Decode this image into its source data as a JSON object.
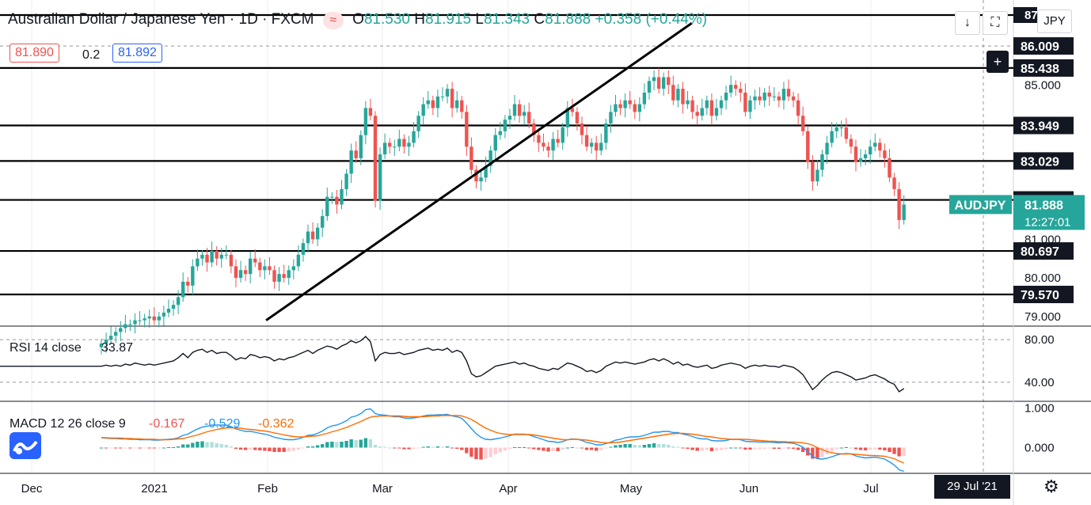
{
  "header": {
    "symbol": "Australian Dollar / Japanese Yen · 1D · FXCM",
    "open_label": "O",
    "open": "81.530",
    "high_label": "H",
    "high": "81.915",
    "low_label": "L",
    "low": "81.343",
    "close_label": "C",
    "close": "81.888",
    "change": "+0.358 (+0.44%)"
  },
  "bidask": {
    "bid": "81.890",
    "spread": "0.2",
    "ask": "81.892"
  },
  "toolbar": {
    "currency": "JPY",
    "date_box": "29 Jul '21"
  },
  "colors": {
    "up": "#26a69a",
    "down": "#ef5350",
    "line": "#000000",
    "macd": "#2196f3",
    "signal": "#ff6d00"
  },
  "chart_data": [
    {
      "type": "candlestick",
      "title": "Australian Dollar / Japanese Yen · 1D · FXCM",
      "price_axis_ticks": [
        79.0,
        80.0,
        81.0,
        85.0
      ],
      "price_axis_tick_labels": [
        "79.000",
        "80.000",
        "81.000",
        "85.000"
      ],
      "ylim": [
        78.75,
        87.2
      ],
      "x_axis_labels": [
        "Dec",
        "2021",
        "Feb",
        "Mar",
        "Apr",
        "May",
        "Jun",
        "Jul"
      ],
      "horizontal_levels": [
        86.009,
        85.438,
        83.949,
        83.029,
        82.02,
        80.697,
        79.57
      ],
      "horizontal_level_labels": [
        "86.009",
        "85.438",
        "83.949",
        "83.029",
        "82.020",
        "80.697",
        "79.570"
      ],
      "top_level_partial": "87",
      "trendline": {
        "start": [
          "2021-02-06",
          78.9
        ],
        "end": [
          "2021-06-10",
          86.6
        ]
      },
      "last_price_label": {
        "symbol": "AUDJPY",
        "price": "81.888",
        "countdown": "12:27:01"
      },
      "closes": [
        78.3,
        78.4,
        78.5,
        78.6,
        78.7,
        78.8,
        78.8,
        78.9,
        78.9,
        78.95,
        79.0,
        78.9,
        79.0,
        79.1,
        79.2,
        79.3,
        79.5,
        79.9,
        79.8,
        80.3,
        80.5,
        80.6,
        80.4,
        80.7,
        80.5,
        80.6,
        80.6,
        80.3,
        80.0,
        80.2,
        80.1,
        80.5,
        80.4,
        80.2,
        80.3,
        80.2,
        79.9,
        80.1,
        80.0,
        80.2,
        80.3,
        80.6,
        80.9,
        81.2,
        81.0,
        81.3,
        81.6,
        82.1,
        82.1,
        81.9,
        82.3,
        82.7,
        83.3,
        83.1,
        83.7,
        84.4,
        84.2,
        82.0,
        83.2,
        83.5,
        83.4,
        83.4,
        83.6,
        83.4,
        83.5,
        83.8,
        84.2,
        84.5,
        84.6,
        84.4,
        84.7,
        84.7,
        84.9,
        84.4,
        84.6,
        84.3,
        83.4,
        82.8,
        82.5,
        82.6,
        82.9,
        83.3,
        83.7,
        83.8,
        84.1,
        84.2,
        84.5,
        84.2,
        84.3,
        84.0,
        83.7,
        83.5,
        83.4,
        83.3,
        83.6,
        83.5,
        83.9,
        84.4,
        84.3,
        84.0,
        83.7,
        83.4,
        83.5,
        83.3,
        83.5,
        84.0,
        84.3,
        84.5,
        84.4,
        84.6,
        84.5,
        84.3,
        84.5,
        84.8,
        85.1,
        85.2,
        84.9,
        85.2,
        85.0,
        84.6,
        84.9,
        84.5,
        84.6,
        84.3,
        84.2,
        84.4,
        84.6,
        84.2,
        84.4,
        84.6,
        84.8,
        85.0,
        84.9,
        84.8,
        84.3,
        84.6,
        84.7,
        84.6,
        84.8,
        84.7,
        84.7,
        84.6,
        84.9,
        84.7,
        84.6,
        84.2,
        83.8,
        83.0,
        82.5,
        82.8,
        83.2,
        83.5,
        83.8,
        83.9,
        83.9,
        83.6,
        83.4,
        83.0,
        83.1,
        83.2,
        83.4,
        83.5,
        83.3,
        83.1,
        82.6,
        82.3,
        81.5,
        81.9
      ]
    },
    {
      "type": "line",
      "title": "RSI 14 close",
      "current_value": "33.87",
      "tick_labels": [
        "80.00",
        "40.00"
      ],
      "ticks": [
        80,
        40
      ],
      "ylim": [
        22,
        92
      ],
      "values": [
        55,
        56,
        55,
        56,
        55,
        57,
        56,
        58,
        57,
        56,
        57,
        56,
        57,
        58,
        59,
        60,
        63,
        67,
        63,
        68,
        70,
        71,
        68,
        70,
        67,
        68,
        68,
        65,
        61,
        63,
        62,
        66,
        65,
        63,
        64,
        63,
        60,
        62,
        61,
        63,
        64,
        66,
        68,
        70,
        67,
        70,
        72,
        74,
        73,
        71,
        74,
        76,
        79,
        77,
        79,
        83,
        78,
        60,
        66,
        68,
        67,
        67,
        68,
        66,
        67,
        68,
        70,
        71,
        72,
        70,
        71,
        70,
        72,
        68,
        70,
        68,
        60,
        48,
        45,
        46,
        49,
        52,
        55,
        56,
        57,
        58,
        59,
        57,
        58,
        56,
        55,
        53,
        52,
        51,
        53,
        52,
        55,
        58,
        57,
        55,
        53,
        50,
        51,
        49,
        51,
        55,
        57,
        59,
        58,
        59,
        58,
        57,
        58,
        59,
        61,
        62,
        60,
        62,
        60,
        57,
        59,
        56,
        57,
        55,
        54,
        55,
        56,
        53,
        54,
        56,
        57,
        58,
        57,
        56,
        53,
        55,
        56,
        55,
        56,
        55,
        55,
        54,
        56,
        55,
        54,
        51,
        47,
        40,
        33,
        37,
        42,
        46,
        49,
        50,
        49,
        47,
        45,
        42,
        43,
        44,
        46,
        47,
        45,
        43,
        40,
        38,
        31,
        34
      ]
    },
    {
      "type": "bar+line",
      "title": "MACD 12 26 close 9",
      "histogram_value": "-0.167",
      "macd_value": "-0.529",
      "signal_value": "-0.362",
      "tick_labels": [
        "1.000",
        "0.000"
      ],
      "ticks": [
        1.0,
        0.0
      ],
      "ylim": [
        -0.65,
        1.15
      ],
      "macd": [
        0.25,
        0.24,
        0.23,
        0.23,
        0.22,
        0.22,
        0.21,
        0.21,
        0.2,
        0.2,
        0.2,
        0.19,
        0.19,
        0.2,
        0.21,
        0.22,
        0.25,
        0.31,
        0.34,
        0.41,
        0.47,
        0.52,
        0.54,
        0.57,
        0.57,
        0.57,
        0.57,
        0.53,
        0.47,
        0.44,
        0.41,
        0.41,
        0.39,
        0.36,
        0.34,
        0.31,
        0.26,
        0.24,
        0.21,
        0.2,
        0.2,
        0.22,
        0.26,
        0.31,
        0.32,
        0.36,
        0.42,
        0.5,
        0.55,
        0.57,
        0.62,
        0.68,
        0.77,
        0.8,
        0.86,
        0.96,
        0.98,
        0.86,
        0.83,
        0.82,
        0.8,
        0.78,
        0.78,
        0.75,
        0.74,
        0.75,
        0.77,
        0.8,
        0.82,
        0.82,
        0.83,
        0.83,
        0.84,
        0.8,
        0.78,
        0.74,
        0.62,
        0.48,
        0.35,
        0.26,
        0.21,
        0.2,
        0.22,
        0.24,
        0.27,
        0.3,
        0.34,
        0.34,
        0.34,
        0.32,
        0.28,
        0.24,
        0.2,
        0.16,
        0.15,
        0.13,
        0.15,
        0.2,
        0.22,
        0.21,
        0.18,
        0.13,
        0.11,
        0.07,
        0.07,
        0.1,
        0.14,
        0.19,
        0.21,
        0.25,
        0.27,
        0.27,
        0.28,
        0.31,
        0.35,
        0.39,
        0.39,
        0.41,
        0.41,
        0.38,
        0.38,
        0.34,
        0.32,
        0.28,
        0.24,
        0.22,
        0.22,
        0.18,
        0.17,
        0.17,
        0.18,
        0.21,
        0.21,
        0.2,
        0.16,
        0.15,
        0.15,
        0.14,
        0.14,
        0.14,
        0.13,
        0.12,
        0.13,
        0.12,
        0.11,
        0.07,
        0.01,
        -0.1,
        -0.22,
        -0.28,
        -0.29,
        -0.27,
        -0.23,
        -0.19,
        -0.16,
        -0.15,
        -0.16,
        -0.21,
        -0.24,
        -0.26,
        -0.25,
        -0.24,
        -0.26,
        -0.29,
        -0.36,
        -0.44,
        -0.56,
        -0.6
      ],
      "signal": [
        0.25,
        0.25,
        0.24,
        0.24,
        0.24,
        0.23,
        0.23,
        0.22,
        0.22,
        0.21,
        0.21,
        0.21,
        0.2,
        0.2,
        0.2,
        0.21,
        0.22,
        0.23,
        0.26,
        0.29,
        0.32,
        0.36,
        0.4,
        0.43,
        0.46,
        0.48,
        0.5,
        0.5,
        0.5,
        0.49,
        0.47,
        0.46,
        0.45,
        0.43,
        0.42,
        0.4,
        0.37,
        0.35,
        0.32,
        0.3,
        0.28,
        0.27,
        0.27,
        0.28,
        0.29,
        0.3,
        0.33,
        0.36,
        0.4,
        0.43,
        0.47,
        0.51,
        0.56,
        0.61,
        0.66,
        0.72,
        0.77,
        0.79,
        0.8,
        0.8,
        0.8,
        0.8,
        0.8,
        0.79,
        0.78,
        0.78,
        0.78,
        0.78,
        0.79,
        0.8,
        0.8,
        0.81,
        0.81,
        0.81,
        0.81,
        0.8,
        0.76,
        0.71,
        0.64,
        0.56,
        0.49,
        0.44,
        0.39,
        0.36,
        0.34,
        0.33,
        0.33,
        0.33,
        0.33,
        0.33,
        0.32,
        0.3,
        0.28,
        0.26,
        0.24,
        0.22,
        0.2,
        0.2,
        0.21,
        0.21,
        0.2,
        0.19,
        0.17,
        0.15,
        0.13,
        0.12,
        0.12,
        0.13,
        0.14,
        0.16,
        0.18,
        0.2,
        0.22,
        0.24,
        0.26,
        0.28,
        0.3,
        0.32,
        0.34,
        0.35,
        0.36,
        0.36,
        0.35,
        0.34,
        0.32,
        0.3,
        0.28,
        0.27,
        0.25,
        0.23,
        0.22,
        0.21,
        0.21,
        0.21,
        0.21,
        0.2,
        0.19,
        0.18,
        0.17,
        0.16,
        0.16,
        0.15,
        0.15,
        0.14,
        0.14,
        0.13,
        0.12,
        0.1,
        0.06,
        0.0,
        -0.05,
        -0.1,
        -0.13,
        -0.15,
        -0.16,
        -0.16,
        -0.16,
        -0.17,
        -0.18,
        -0.19,
        -0.2,
        -0.2,
        -0.21,
        -0.22,
        -0.25,
        -0.28,
        -0.34,
        -0.39
      ]
    }
  ]
}
